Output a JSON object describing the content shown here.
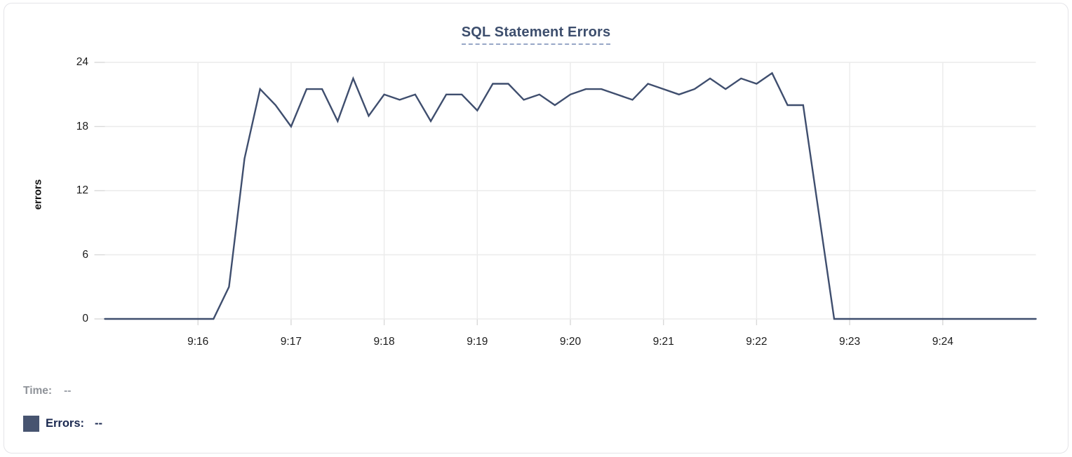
{
  "chart_data": {
    "type": "line",
    "title": "SQL Statement Errors",
    "xlabel": "",
    "ylabel": "errors",
    "y_ticks": [
      0,
      6,
      12,
      18,
      24
    ],
    "ylim": [
      0,
      24
    ],
    "x_tick_labels": [
      "9:16",
      "9:17",
      "9:18",
      "9:19",
      "9:20",
      "9:21",
      "9:22",
      "9:23",
      "9:24"
    ],
    "x_range": [
      "9:15:00",
      "9:25:00"
    ],
    "grid": true,
    "legend_position": "bottom-left",
    "line_color": "#3f4e6e",
    "series": [
      {
        "name": "Errors",
        "color": "#475470",
        "points": [
          [
            "9:15:00",
            0
          ],
          [
            "9:15:10",
            0
          ],
          [
            "9:15:20",
            0
          ],
          [
            "9:15:30",
            0
          ],
          [
            "9:15:40",
            0
          ],
          [
            "9:15:50",
            0
          ],
          [
            "9:16:00",
            0
          ],
          [
            "9:16:10",
            0
          ],
          [
            "9:16:20",
            3
          ],
          [
            "9:16:30",
            15
          ],
          [
            "9:16:40",
            21.5
          ],
          [
            "9:16:50",
            20
          ],
          [
            "9:17:00",
            18
          ],
          [
            "9:17:10",
            21.5
          ],
          [
            "9:17:20",
            21.5
          ],
          [
            "9:17:30",
            18.5
          ],
          [
            "9:17:40",
            22.5
          ],
          [
            "9:17:50",
            19
          ],
          [
            "9:18:00",
            21
          ],
          [
            "9:18:10",
            20.5
          ],
          [
            "9:18:20",
            21
          ],
          [
            "9:18:30",
            18.5
          ],
          [
            "9:18:40",
            21
          ],
          [
            "9:18:50",
            21
          ],
          [
            "9:19:00",
            19.5
          ],
          [
            "9:19:10",
            22
          ],
          [
            "9:19:20",
            22
          ],
          [
            "9:19:30",
            20.5
          ],
          [
            "9:19:40",
            21
          ],
          [
            "9:19:50",
            20
          ],
          [
            "9:20:00",
            21
          ],
          [
            "9:20:10",
            21.5
          ],
          [
            "9:20:20",
            21.5
          ],
          [
            "9:20:30",
            21
          ],
          [
            "9:20:40",
            20.5
          ],
          [
            "9:20:50",
            22
          ],
          [
            "9:21:00",
            21.5
          ],
          [
            "9:21:10",
            21
          ],
          [
            "9:21:20",
            21.5
          ],
          [
            "9:21:30",
            22.5
          ],
          [
            "9:21:40",
            21.5
          ],
          [
            "9:21:50",
            22.5
          ],
          [
            "9:22:00",
            22
          ],
          [
            "9:22:10",
            23
          ],
          [
            "9:22:20",
            20
          ],
          [
            "9:22:30",
            20
          ],
          [
            "9:22:40",
            10
          ],
          [
            "9:22:50",
            0
          ],
          [
            "9:23:00",
            0
          ],
          [
            "9:23:10",
            0
          ],
          [
            "9:23:20",
            0
          ],
          [
            "9:23:30",
            0
          ],
          [
            "9:23:40",
            0
          ],
          [
            "9:23:50",
            0
          ],
          [
            "9:24:00",
            0
          ],
          [
            "9:24:10",
            0
          ],
          [
            "9:24:20",
            0
          ],
          [
            "9:24:30",
            0
          ],
          [
            "9:24:40",
            0
          ],
          [
            "9:24:50",
            0
          ],
          [
            "9:25:00",
            0
          ]
        ]
      }
    ]
  },
  "tooltip": {
    "time_label": "Time:",
    "time_value": "--",
    "errors_label": "Errors:",
    "errors_value": "--"
  },
  "colors": {
    "line": "#3f4e6e",
    "swatch": "#475470",
    "title": "#3d4e6d",
    "title_underline": "#97a7c7",
    "grid": "#ebebeb",
    "tick_stub": "#d9d9d9",
    "legend_time": "#8f9399",
    "legend_errors": "#1b2950"
  }
}
